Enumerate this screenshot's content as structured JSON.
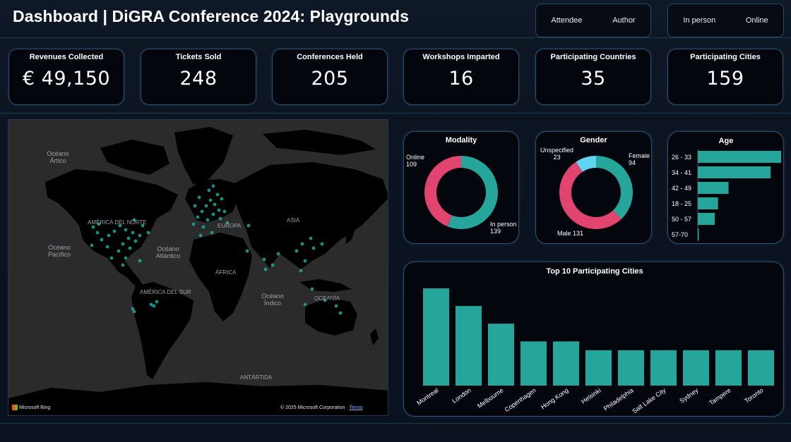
{
  "header": {
    "title": "Dashboard | DiGRA Conference 2024: Playgrounds",
    "role_slicer": [
      "Attendee",
      "Author"
    ],
    "mode_slicer": [
      "In person",
      "Online"
    ]
  },
  "kpis": [
    {
      "label": "Revenues Collected",
      "value": "€ 49,150"
    },
    {
      "label": "Tickets Sold",
      "value": "248"
    },
    {
      "label": "Conferences Held",
      "value": "205"
    },
    {
      "label": "Workshops Imparted",
      "value": "16"
    },
    {
      "label": "Participating Countries",
      "value": "35"
    },
    {
      "label": "Participating Cities",
      "value": "159"
    }
  ],
  "map": {
    "labels": {
      "arctic": "Océano Ártico",
      "north_america": "AMÉRICA DEL NORTE",
      "europe": "EUROPA",
      "asia": "ASIA",
      "pacific": "Océano Pacífico",
      "atlantic": "Océano Atlántico",
      "africa": "ÁFRICA",
      "south_america": "AMÉRICA DEL SUR",
      "indian": "Océano Índico",
      "oceania": "OCEANÍA",
      "antarctica": "ANTÁRTIDA"
    },
    "bing_logo": "Microsoft Bing",
    "copyright": "© 2025 Microsoft Corporation",
    "terms": "Terms",
    "point_color": "#1fa99b"
  },
  "modality": {
    "title": "Modality",
    "online_label": "Online",
    "online_value": "109",
    "inperson_label": "In person",
    "inperson_value": "139"
  },
  "gender": {
    "title": "Gender",
    "female_label": "Female",
    "female_value": "94",
    "male_label": "Male 131",
    "unspecified_label": "Unspecified",
    "unspecified_value": "23"
  },
  "chart_data": [
    {
      "type": "pie",
      "title": "Modality",
      "categories": [
        "In person",
        "Online"
      ],
      "values": [
        139,
        109
      ],
      "colors": [
        "#26a69a",
        "#e0446f"
      ],
      "donut": true
    },
    {
      "type": "pie",
      "title": "Gender",
      "categories": [
        "Female",
        "Male",
        "Unspecified"
      ],
      "values": [
        94,
        131,
        23
      ],
      "colors": [
        "#26a69a",
        "#e0446f",
        "#5ed4f2"
      ],
      "donut": true
    },
    {
      "type": "bar",
      "orientation": "horizontal",
      "title": "Age",
      "categories": [
        "26 - 33",
        "34 - 41",
        "42 - 49",
        "18 - 25",
        "50 - 57",
        "57-70"
      ],
      "values": [
        103,
        90,
        38,
        25,
        21,
        1
      ],
      "color": "#26a69a"
    },
    {
      "type": "bar",
      "title": "Top 10 Participating Cities",
      "categories": [
        "Montreal",
        "London",
        "Melbourne",
        "Copenhagen",
        "Hong Kong",
        "Helsinki",
        "Philadelphia",
        "Salt Lake City",
        "Sydney",
        "Tampere",
        "Toronto"
      ],
      "values": [
        11,
        9,
        7,
        5,
        5,
        4,
        4,
        4,
        4,
        4,
        4
      ],
      "color": "#26a69a"
    }
  ]
}
